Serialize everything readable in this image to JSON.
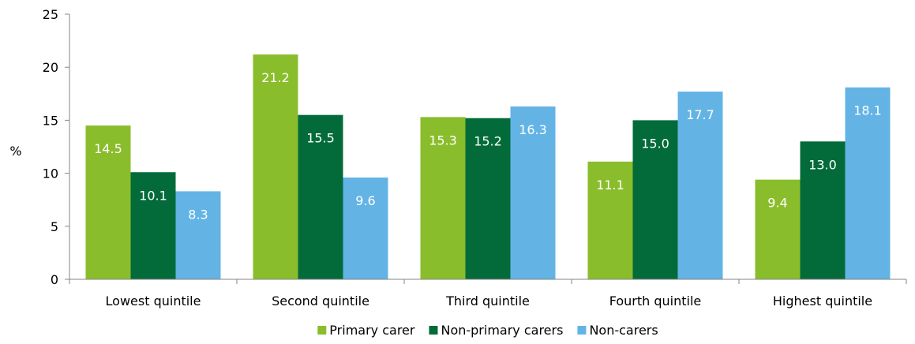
{
  "chart_data": {
    "type": "bar",
    "title": "",
    "xlabel": "",
    "ylabel": "%",
    "ylim": [
      0,
      25
    ],
    "yticks": [
      0,
      5,
      10,
      15,
      20,
      25
    ],
    "grid": false,
    "legend_position": "bottom",
    "categories": [
      "Lowest quintile",
      "Second quintile",
      "Third quintile",
      "Fourth quintile",
      "Highest quintile"
    ],
    "series": [
      {
        "name": "Primary carer",
        "color": "#8abd2b",
        "values": [
          14.5,
          21.2,
          15.3,
          11.1,
          9.4
        ]
      },
      {
        "name": "Non-primary carers",
        "color": "#036b3a",
        "values": [
          10.1,
          15.5,
          15.2,
          15.0,
          13.0
        ]
      },
      {
        "name": "Non-carers",
        "color": "#63b4e4",
        "values": [
          8.3,
          9.6,
          16.3,
          17.7,
          18.1
        ]
      }
    ]
  }
}
